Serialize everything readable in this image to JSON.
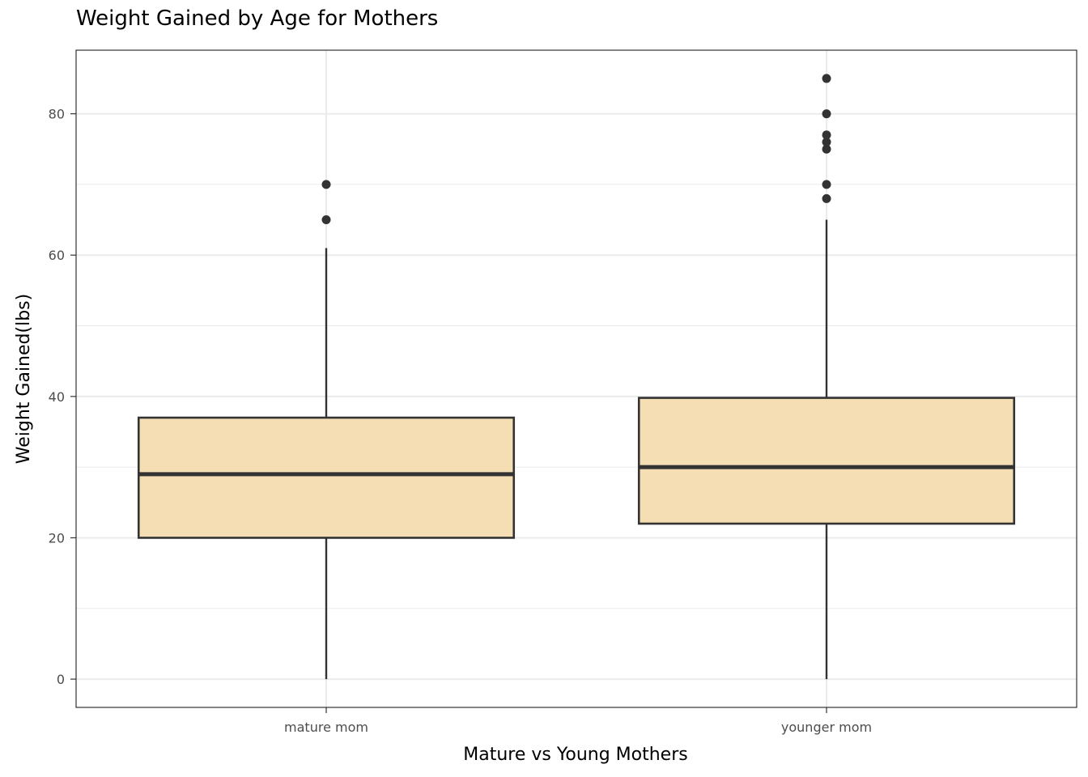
{
  "chart_data": {
    "type": "box",
    "title": "Weight Gained by Age for Mothers",
    "xlabel": "Mature vs Young Mothers",
    "ylabel": "Weight Gained(lbs)",
    "ylim": [
      -4,
      89
    ],
    "yticks": [
      0,
      20,
      40,
      60,
      80
    ],
    "grid": true,
    "categories": [
      "mature mom",
      "younger mom"
    ],
    "boxes": [
      {
        "category": "mature mom",
        "min": 0,
        "q1": 20,
        "median": 29,
        "q3": 37,
        "max": 61,
        "outliers": [
          65,
          70
        ]
      },
      {
        "category": "younger mom",
        "min": 0,
        "q1": 22,
        "median": 30,
        "q3": 39.8,
        "max": 65,
        "outliers": [
          68,
          70,
          75,
          76,
          77,
          80,
          85
        ]
      }
    ],
    "colors": {
      "box_fill": "#f5deb3",
      "stroke": "#333333",
      "grid": "#ebebeb",
      "panel_border": "#333333"
    }
  }
}
